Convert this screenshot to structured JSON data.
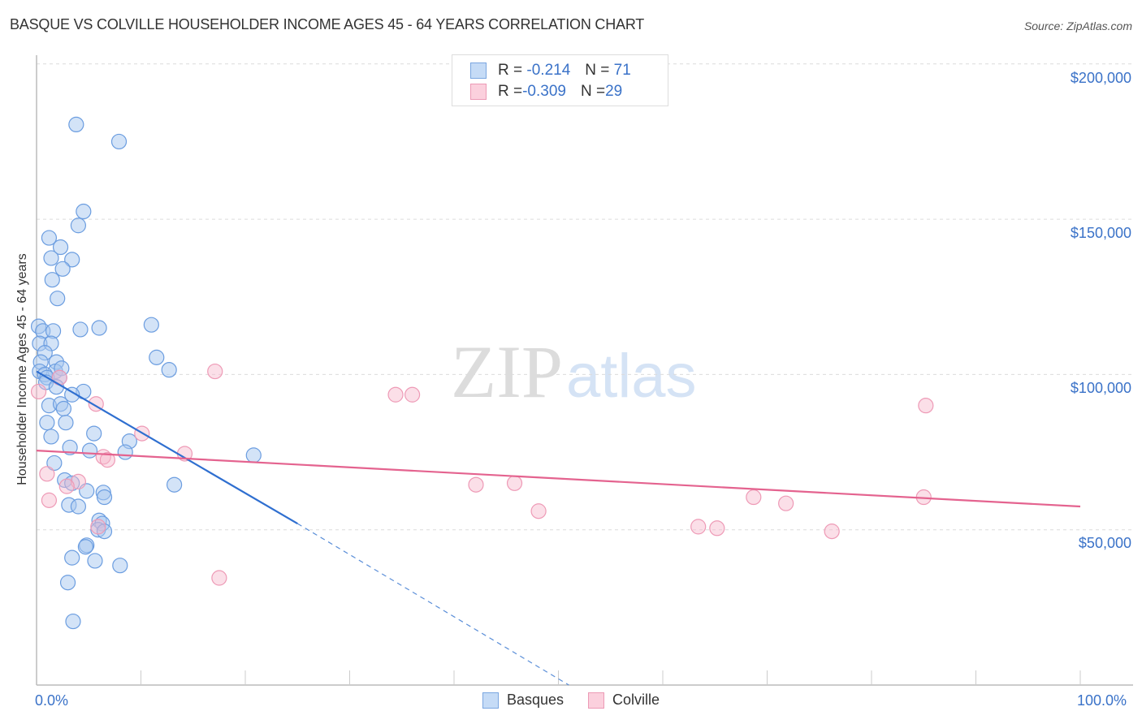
{
  "header": {
    "title": "BASQUE VS COLVILLE HOUSEHOLDER INCOME AGES 45 - 64 YEARS CORRELATION CHART",
    "source": "Source: ZipAtlas.com"
  },
  "legend": {
    "rows": [
      {
        "r_label": "R = ",
        "r_value": "-0.214",
        "n_label": "N = ",
        "n_value": "71",
        "color": "#a8c8f0"
      },
      {
        "r_label": "R = ",
        "r_value": "-0.309",
        "n_label": "N = ",
        "n_value": "29",
        "color": "#f7b8cc"
      }
    ],
    "series": [
      {
        "name": "Basques",
        "color": "#a8c8f0"
      },
      {
        "name": "Colville",
        "color": "#f7b8cc"
      }
    ]
  },
  "axes": {
    "ylabel": "Householder Income Ages 45 - 64 years",
    "yticks": [
      "$200,000",
      "$150,000",
      "$100,000",
      "$50,000"
    ],
    "xticks": [
      "0.0%",
      "100.0%"
    ]
  },
  "watermark": {
    "zip": "ZIP",
    "atlas": "atlas"
  },
  "colors": {
    "blue": "#3a72c8",
    "blue_fill": "#a8c8f0",
    "pink": "#e8608f",
    "pink_fill": "#f7b8cc",
    "grid": "#dddddd"
  },
  "chart_data": {
    "type": "scatter",
    "title": "BASQUE VS COLVILLE HOUSEHOLDER INCOME AGES 45 - 64 YEARS CORRELATION CHART",
    "xlabel": "",
    "ylabel": "Householder Income Ages 45 - 64 years",
    "xlim": [
      0,
      100
    ],
    "ylim": [
      0,
      205000
    ],
    "x_tick_labels": [
      "0.0%",
      "100.0%"
    ],
    "y_tick_labels": [
      "$50,000",
      "$100,000",
      "$150,000",
      "$200,000"
    ],
    "grid": true,
    "legend_position": "top-center and bottom",
    "series": [
      {
        "name": "Basques",
        "r": -0.214,
        "n": 71,
        "trend": {
          "x0": 0,
          "y0": 101000,
          "x1": 25,
          "y1": 52000,
          "dashed_extension_to": [
            51,
            0
          ]
        },
        "points": [
          [
            3.8,
            180500
          ],
          [
            7.9,
            175000
          ],
          [
            4.5,
            152500
          ],
          [
            4.0,
            148000
          ],
          [
            1.2,
            144000
          ],
          [
            2.3,
            141000
          ],
          [
            1.4,
            137500
          ],
          [
            3.4,
            137000
          ],
          [
            2.5,
            134000
          ],
          [
            1.5,
            130500
          ],
          [
            2.0,
            124500
          ],
          [
            0.2,
            115500
          ],
          [
            0.6,
            114000
          ],
          [
            1.6,
            114000
          ],
          [
            4.2,
            114500
          ],
          [
            6.0,
            115000
          ],
          [
            11.0,
            116000
          ],
          [
            0.3,
            110000
          ],
          [
            1.4,
            110000
          ],
          [
            0.8,
            107000
          ],
          [
            0.4,
            104000
          ],
          [
            1.9,
            104000
          ],
          [
            11.5,
            105500
          ],
          [
            12.7,
            101500
          ],
          [
            0.3,
            101000
          ],
          [
            1.8,
            101000
          ],
          [
            2.4,
            102000
          ],
          [
            0.8,
            100000
          ],
          [
            1.0,
            99000
          ],
          [
            2.2,
            99000
          ],
          [
            0.9,
            97500
          ],
          [
            1.9,
            96000
          ],
          [
            4.5,
            94500
          ],
          [
            3.4,
            93500
          ],
          [
            1.2,
            90000
          ],
          [
            2.3,
            90500
          ],
          [
            2.6,
            89000
          ],
          [
            1.0,
            84500
          ],
          [
            2.8,
            84500
          ],
          [
            5.5,
            81000
          ],
          [
            1.4,
            80000
          ],
          [
            8.9,
            78500
          ],
          [
            3.2,
            76500
          ],
          [
            5.1,
            75500
          ],
          [
            8.5,
            75000
          ],
          [
            20.8,
            74000
          ],
          [
            1.7,
            71500
          ],
          [
            2.7,
            66000
          ],
          [
            3.4,
            65000
          ],
          [
            13.2,
            64500
          ],
          [
            6.4,
            62000
          ],
          [
            4.8,
            62500
          ],
          [
            6.5,
            60500
          ],
          [
            3.1,
            58000
          ],
          [
            4.0,
            57500
          ],
          [
            6.0,
            53000
          ],
          [
            6.3,
            52000
          ],
          [
            5.9,
            50000
          ],
          [
            6.5,
            49500
          ],
          [
            4.8,
            45000
          ],
          [
            4.7,
            44500
          ],
          [
            3.4,
            41000
          ],
          [
            5.6,
            40000
          ],
          [
            8.0,
            38500
          ],
          [
            3.0,
            33000
          ],
          [
            3.5,
            20500
          ]
        ]
      },
      {
        "name": "Colville",
        "r": -0.309,
        "n": 29,
        "trend": {
          "x0": 0,
          "y0": 75500,
          "x1": 100,
          "y1": 57500
        },
        "points": [
          [
            0.2,
            94500
          ],
          [
            2.2,
            99000
          ],
          [
            5.7,
            90500
          ],
          [
            10.1,
            81000
          ],
          [
            14.2,
            74500
          ],
          [
            6.4,
            73500
          ],
          [
            6.8,
            72500
          ],
          [
            1.0,
            68000
          ],
          [
            4.0,
            65500
          ],
          [
            2.9,
            64000
          ],
          [
            1.2,
            59500
          ],
          [
            5.9,
            51000
          ],
          [
            17.1,
            101000
          ],
          [
            34.4,
            93500
          ],
          [
            36.0,
            93500
          ],
          [
            17.5,
            34500
          ],
          [
            42.1,
            64500
          ],
          [
            45.8,
            65000
          ],
          [
            48.1,
            56000
          ],
          [
            63.4,
            51000
          ],
          [
            65.2,
            50500
          ],
          [
            68.7,
            60500
          ],
          [
            71.8,
            58500
          ],
          [
            76.2,
            49500
          ],
          [
            85.0,
            60500
          ],
          [
            85.2,
            90000
          ]
        ]
      }
    ]
  }
}
